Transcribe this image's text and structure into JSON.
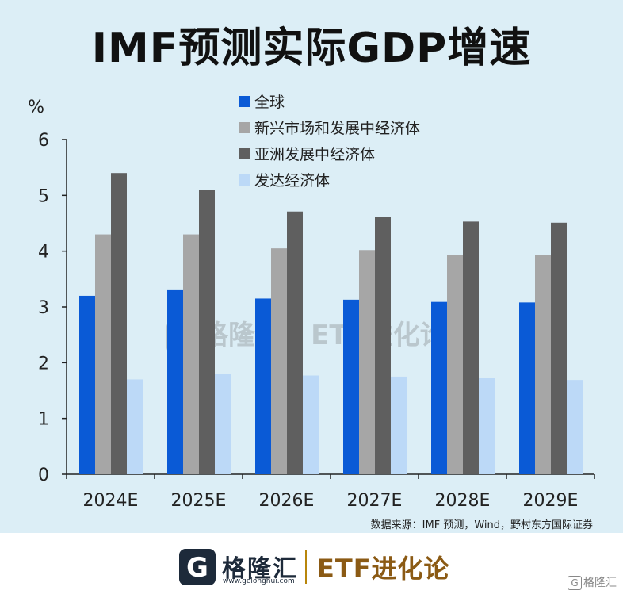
{
  "title": "IMF预测实际GDP增速",
  "source": "数据来源：IMF 预测，Wind，野村东方国际证券",
  "footer": {
    "logo_glyph": "G",
    "logo_text": "格隆汇",
    "logo_url": "www.gelonghui.com",
    "right_text": "ETF进化论",
    "corner_text": "格隆汇"
  },
  "watermark": {
    "glyph": "G",
    "text": "格隆汇 | ETF进化论"
  },
  "chart_data": {
    "type": "bar",
    "categories": [
      "2024E",
      "2025E",
      "2026E",
      "2027E",
      "2028E",
      "2029E"
    ],
    "series": [
      {
        "name": "全球",
        "color": "#0a5ad6",
        "values": [
          3.2,
          3.3,
          3.15,
          3.13,
          3.09,
          3.08
        ]
      },
      {
        "name": "新兴市场和发展中经济体",
        "color": "#a6a6a6",
        "values": [
          4.3,
          4.3,
          4.05,
          4.02,
          3.93,
          3.93
        ]
      },
      {
        "name": "亚洲发展中经济体",
        "color": "#5f5f5f",
        "values": [
          5.4,
          5.1,
          4.71,
          4.61,
          4.53,
          4.51
        ]
      },
      {
        "name": "发达经济体",
        "color": "#bcd9f7",
        "values": [
          1.7,
          1.8,
          1.77,
          1.75,
          1.73,
          1.69
        ]
      }
    ],
    "ylabel": "%",
    "ylim": [
      0,
      6
    ],
    "yticks": [
      0,
      1,
      2,
      3,
      4,
      5,
      6
    ],
    "grid": false,
    "legend_position": "top"
  }
}
